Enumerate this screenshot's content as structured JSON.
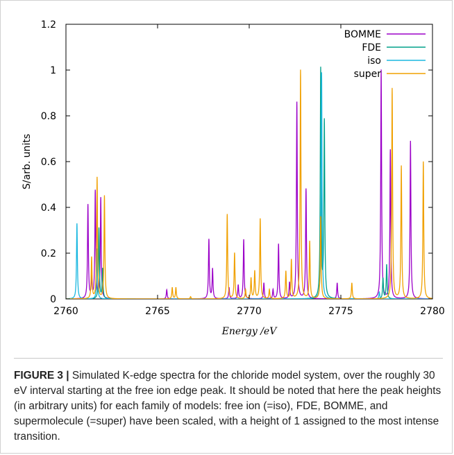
{
  "chart_data": {
    "type": "line",
    "title": "",
    "xlabel": "Energy /eV",
    "ylabel": "S/arb. units",
    "xlim": [
      2760,
      2780
    ],
    "ylim": [
      0,
      1.2
    ],
    "x_ticks": [
      "2760",
      "2765",
      "2770",
      "2775",
      "2780"
    ],
    "y_ticks": [
      "0",
      "0.2",
      "0.4",
      "0.6",
      "0.8",
      "1",
      "1.2"
    ],
    "legend_position": "top-right",
    "grid": false,
    "series": [
      {
        "name": "BOMME",
        "color": "#9b00c8",
        "peaks": [
          [
            2761.2,
            0.41
          ],
          [
            2761.4,
            0.09
          ],
          [
            2761.6,
            0.47
          ],
          [
            2761.9,
            0.44
          ],
          [
            2765.5,
            0.04
          ],
          [
            2767.8,
            0.26
          ],
          [
            2768.0,
            0.13
          ],
          [
            2768.9,
            0.05
          ],
          [
            2769.4,
            0.06
          ],
          [
            2769.7,
            0.26
          ],
          [
            2770.8,
            0.07
          ],
          [
            2771.3,
            0.04
          ],
          [
            2771.6,
            0.24
          ],
          [
            2772.2,
            0.07
          ],
          [
            2772.6,
            0.86
          ],
          [
            2773.1,
            0.48
          ],
          [
            2774.8,
            0.07
          ],
          [
            2777.2,
            1.0
          ],
          [
            2777.7,
            0.65
          ],
          [
            2778.8,
            0.69
          ]
        ]
      },
      {
        "name": "FDE",
        "color": "#00a08a",
        "peaks": [
          [
            2761.8,
            0.31
          ],
          [
            2762.0,
            0.13
          ],
          [
            2773.9,
            1.0
          ],
          [
            2774.1,
            0.77
          ],
          [
            2777.3,
            0.09
          ],
          [
            2777.5,
            0.15
          ]
        ]
      },
      {
        "name": "iso",
        "color": "#19b7e0",
        "peaks": [
          [
            2760.6,
            0.33
          ],
          [
            2761.7,
            0.22
          ],
          [
            2773.95,
            0.99
          ],
          [
            2777.1,
            0.03
          ]
        ]
      },
      {
        "name": "super",
        "color": "#f0a000",
        "peaks": [
          [
            2761.4,
            0.18
          ],
          [
            2761.7,
            0.53
          ],
          [
            2762.1,
            0.45
          ],
          [
            2765.8,
            0.05
          ],
          [
            2766.0,
            0.05
          ],
          [
            2766.8,
            0.01
          ],
          [
            2768.8,
            0.37
          ],
          [
            2769.2,
            0.2
          ],
          [
            2769.8,
            0.04
          ],
          [
            2770.1,
            0.09
          ],
          [
            2770.3,
            0.12
          ],
          [
            2770.6,
            0.35
          ],
          [
            2771.1,
            0.04
          ],
          [
            2772.0,
            0.12
          ],
          [
            2772.3,
            0.17
          ],
          [
            2772.8,
            1.0
          ],
          [
            2773.3,
            0.25
          ],
          [
            2773.9,
            0.36
          ],
          [
            2775.6,
            0.07
          ],
          [
            2777.8,
            0.92
          ],
          [
            2778.3,
            0.58
          ],
          [
            2779.5,
            0.6
          ]
        ]
      }
    ]
  },
  "caption": {
    "label": "FIGURE 3 |",
    "text": " Simulated K-edge spectra for the chloride model system, over the roughly 30 eV interval starting at the free ion edge peak. It should be noted that here the peak heights (in arbitrary units) for each family of models: free ion (=iso), FDE, BOMME, and supermolecule (=super) have been scaled, with a height of 1 assigned to the most intense transition."
  }
}
